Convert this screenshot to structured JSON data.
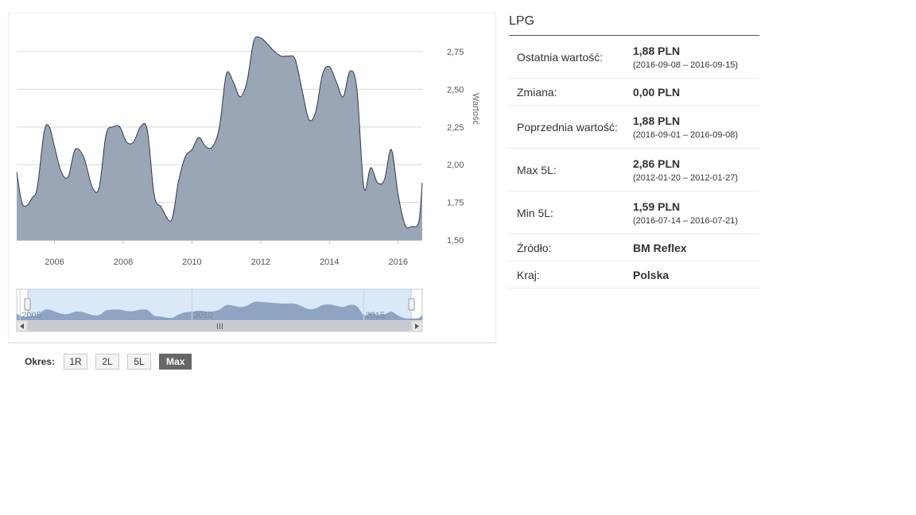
{
  "chart_data": {
    "type": "area",
    "ylabel": "Wartość",
    "x_ticks": [
      "2006",
      "2008",
      "2010",
      "2012",
      "2014",
      "2016"
    ],
    "y_ticks": [
      "1,50",
      "1,75",
      "2,00",
      "2,25",
      "2,50",
      "2,75"
    ],
    "ylim": [
      1.5,
      2.95
    ],
    "xlim": [
      2004.9,
      2016.7
    ],
    "grid": true,
    "navigator_ticks": [
      "2005",
      "2010",
      "2015"
    ],
    "x": [
      2004.9,
      2005.05,
      2005.2,
      2005.35,
      2005.5,
      2005.7,
      2005.85,
      2006.0,
      2006.2,
      2006.4,
      2006.6,
      2006.85,
      2007.1,
      2007.3,
      2007.5,
      2007.7,
      2007.9,
      2008.1,
      2008.3,
      2008.5,
      2008.7,
      2008.9,
      2009.1,
      2009.4,
      2009.6,
      2009.8,
      2010.0,
      2010.2,
      2010.4,
      2010.6,
      2010.8,
      2011.0,
      2011.2,
      2011.4,
      2011.6,
      2011.8,
      2012.0,
      2012.2,
      2012.4,
      2012.6,
      2012.8,
      2013.0,
      2013.2,
      2013.4,
      2013.6,
      2013.8,
      2014.0,
      2014.2,
      2014.4,
      2014.6,
      2014.8,
      2015.0,
      2015.2,
      2015.4,
      2015.6,
      2015.8,
      2016.0,
      2016.2,
      2016.4,
      2016.6,
      2016.7
    ],
    "values": [
      1.95,
      1.75,
      1.73,
      1.78,
      1.85,
      2.22,
      2.25,
      2.12,
      1.95,
      1.92,
      2.1,
      2.05,
      1.85,
      1.85,
      2.2,
      2.25,
      2.25,
      2.15,
      2.15,
      2.25,
      2.23,
      1.8,
      1.72,
      1.63,
      1.88,
      2.05,
      2.1,
      2.18,
      2.12,
      2.12,
      2.25,
      2.6,
      2.55,
      2.45,
      2.55,
      2.82,
      2.84,
      2.8,
      2.75,
      2.72,
      2.72,
      2.7,
      2.5,
      2.3,
      2.35,
      2.6,
      2.65,
      2.55,
      2.45,
      2.62,
      2.5,
      1.85,
      1.98,
      1.88,
      1.9,
      2.1,
      1.8,
      1.6,
      1.59,
      1.62,
      1.88
    ]
  },
  "period": {
    "label": "Okres:",
    "buttons": [
      "1R",
      "2L",
      "5L",
      "Max"
    ],
    "active": "Max"
  },
  "info": {
    "title": "LPG",
    "last_label": "Ostatnia wartość:",
    "last_value": "1,88 PLN",
    "last_range": "(2016-09-08 – 2016-09-15)",
    "change_label": "Zmiana:",
    "change_value": "0,00 PLN",
    "prev_label": "Poprzednia wartość:",
    "prev_value": "1,88 PLN",
    "prev_range": "(2016-09-01 – 2016-09-08)",
    "max_label": "Max 5L:",
    "max_value": "2,86 PLN",
    "max_range": "(2012-01-20 – 2012-01-27)",
    "min_label": "Min 5L:",
    "min_value": "1,59 PLN",
    "min_range": "(2016-07-14 – 2016-07-21)",
    "source_label": "Źródło:",
    "source_value": "BM Reflex",
    "country_label": "Kraj:",
    "country_value": "Polska"
  },
  "colors": {
    "area_fill": "#9aa5b5",
    "area_line": "#2b3a4f",
    "navigator_bg": "#dbe8f8",
    "navigator_area": "#8ea4c2",
    "scrollbar": "#c8ccd2"
  }
}
